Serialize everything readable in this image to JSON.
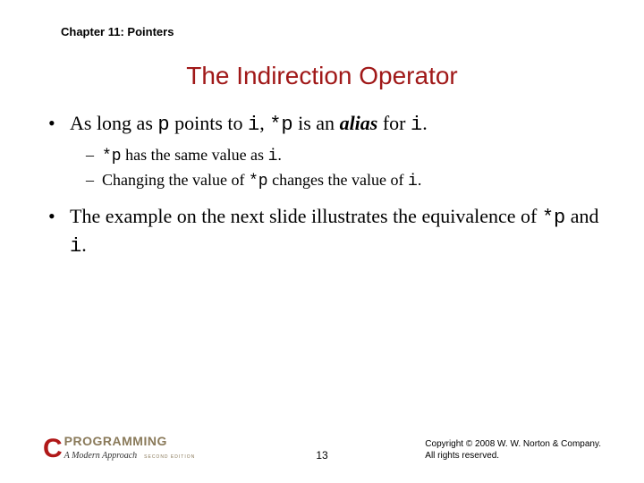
{
  "chapter": "Chapter 11: Pointers",
  "title": "The Indirection Operator",
  "bullets": [
    {
      "pre": "As long as ",
      "c1": "p",
      "mid1": " points to ",
      "c2": "i",
      "mid2": ", ",
      "c3": "*p",
      "mid3": " is an ",
      "em": "alias",
      "mid4": " for ",
      "c4": "i",
      "post": "."
    },
    {
      "pre": "The example on the next slide illustrates the equivalence of ",
      "c1": "*p",
      "mid1": " and ",
      "c2": "i",
      "post": "."
    }
  ],
  "subbullets": [
    {
      "c1": "*p",
      "t1": " has the same value as ",
      "c2": "i",
      "t2": "."
    },
    {
      "t0": "Changing the value of ",
      "c1": "*p",
      "t1": " changes the value of ",
      "c2": "i",
      "t2": "."
    }
  ],
  "footer": {
    "page": "13",
    "copyright_l1": "Copyright © 2008 W. W. Norton & Company.",
    "copyright_l2": "All rights reserved.",
    "logo_c": "C",
    "logo_prog": "PROGRAMMING",
    "logo_sub": "A Modern Approach",
    "logo_ed": "SECOND EDITION"
  },
  "colors": {
    "title": "#a01818",
    "text": "#000000",
    "logo_c": "#b01818",
    "logo_prog": "#8a7a5a",
    "bg": "#ffffff"
  },
  "typography": {
    "chapter_font": "Arial bold 13px",
    "title_font": "Arial 28px",
    "body_font": "Times New Roman 22px",
    "sub_font": "Times New Roman 18px",
    "code_font": "Courier New",
    "footer_font": "Arial 10-12px"
  }
}
